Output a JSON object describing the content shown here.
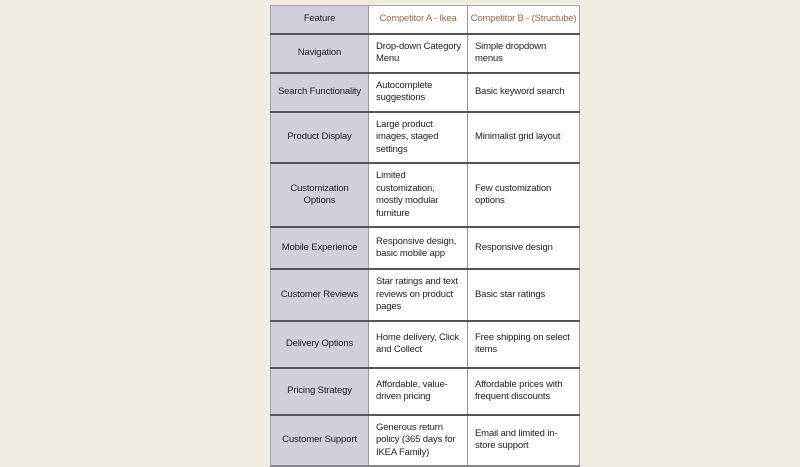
{
  "page": {
    "background_color": "#f1ece1"
  },
  "table": {
    "columns": [
      {
        "id": "feature",
        "label": "Feature"
      },
      {
        "id": "competitor_a",
        "label": "Competitor A - Ikea"
      },
      {
        "id": "competitor_b",
        "label": "Competitor B - (Structube)"
      }
    ],
    "colors": {
      "header_accent": "#a2634a",
      "feature_column_bg": "#d2cfdc",
      "cell_bg": "#ffffff",
      "body_text": "#1c1c1e",
      "row_border": "#56545c",
      "column_border": "#99959f",
      "page_bg": "#f1ece1"
    },
    "rows": [
      {
        "feature": "Navigation",
        "competitor_a": "Drop-down Category Menu",
        "competitor_b": "Simple dropdown menus"
      },
      {
        "feature": "Search Functionality",
        "competitor_a": "Autocomplete suggestions",
        "competitor_b": "Basic keyword search"
      },
      {
        "feature": "Product Display",
        "competitor_a": "Large product images, staged settings",
        "competitor_b": "Minimalist grid layout"
      },
      {
        "feature": "Customization Options",
        "competitor_a": "Limited customization, mostly modular furniture",
        "competitor_b": "Few customization options"
      },
      {
        "feature": "Mobile Experience",
        "competitor_a": "Responsive design, basic mobile app",
        "competitor_b": "Responsive design"
      },
      {
        "feature": "Customer Reviews",
        "competitor_a": "Star ratings and text reviews on product pages",
        "competitor_b": "Basic star ratings"
      },
      {
        "feature": "Delivery Options",
        "competitor_a": "Home delivery, Click and Collect",
        "competitor_b": "Free shipping on select items"
      },
      {
        "feature": "Pricing Strategy",
        "competitor_a": "Affordable, value-driven pricing",
        "competitor_b": "Affordable prices with frequent discounts"
      },
      {
        "feature": "Customer Support",
        "competitor_a": "Generous return policy (365 days for IKEA Family)",
        "competitor_b": "Email and limited in-store support"
      }
    ]
  }
}
